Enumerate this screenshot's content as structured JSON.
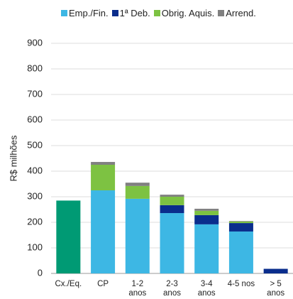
{
  "chart_data": {
    "type": "stacked_bar",
    "y_label": "R$ milhões",
    "categories": [
      "Cx./Eq.",
      "CP",
      "1-2 anos",
      "2-3 anos",
      "3-4 anos",
      "4-5 nos",
      "> 5 anos"
    ],
    "series": [
      {
        "name": "Emp./Fin.",
        "color": "#3db7e4",
        "point_colors": [
          "#009a74",
          null,
          null,
          null,
          null,
          null,
          null
        ],
        "values": [
          285,
          325,
          292,
          236,
          192,
          164,
          0
        ]
      },
      {
        "name": "1ª Deb.",
        "color": "#0a2d8c",
        "values": [
          0,
          0,
          0,
          31,
          36,
          33,
          18
        ]
      },
      {
        "name": "Obrig. Aquis.",
        "color": "#7dc242",
        "values": [
          0,
          100,
          50,
          33,
          17,
          6,
          0
        ]
      },
      {
        "name": "Arrend.",
        "color": "#808080",
        "values": [
          0,
          11,
          13,
          8,
          8,
          2,
          0
        ]
      }
    ],
    "ylim": [
      0,
      900
    ],
    "yticks": [
      0,
      100,
      200,
      300,
      400,
      500,
      600,
      700,
      800,
      900
    ],
    "grid": true
  }
}
